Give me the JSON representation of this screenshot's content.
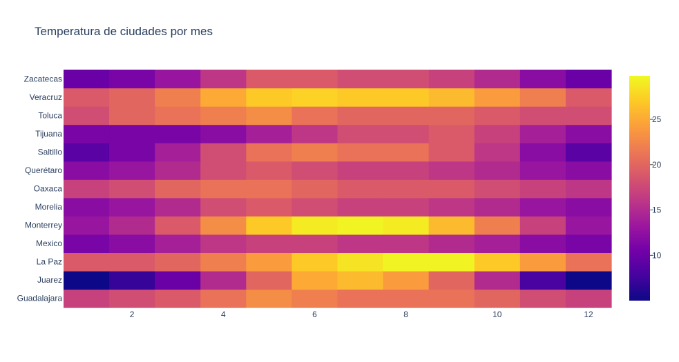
{
  "chart_data": {
    "type": "heatmap",
    "title": "Temperatura de ciudades por mes",
    "xlabel": "",
    "ylabel": "",
    "x": [
      1,
      2,
      3,
      4,
      5,
      6,
      7,
      8,
      9,
      10,
      11,
      12
    ],
    "x_ticks": [
      2,
      4,
      6,
      8,
      10,
      12
    ],
    "rows": [
      "Guadalajara",
      "Juarez",
      "La Paz",
      "Mexico",
      "Monterrey",
      "Morelia",
      "Oaxaca",
      "Querétaro",
      "Saltillo",
      "Tijuana",
      "Toluca",
      "Veracruz",
      "Zacatecas"
    ],
    "z": [
      [
        17,
        18,
        19,
        21,
        23,
        22,
        21,
        21,
        21,
        20,
        18,
        17
      ],
      [
        5,
        7,
        10,
        15,
        20,
        25,
        26,
        24,
        20,
        15,
        8,
        5
      ],
      [
        19,
        19,
        20,
        22,
        24,
        27,
        28.5,
        29.5,
        29.5,
        27,
        24,
        21
      ],
      [
        11,
        12,
        14,
        16,
        17,
        17,
        16,
        16,
        15,
        14,
        12,
        11
      ],
      [
        13,
        15,
        19,
        23,
        27,
        29,
        29.5,
        29,
        26,
        22,
        17,
        13
      ],
      [
        12,
        13,
        15,
        18,
        19,
        18,
        17,
        17,
        16,
        15,
        13,
        12
      ],
      [
        17,
        18,
        20,
        21,
        21,
        20,
        19,
        19,
        19,
        18,
        17,
        16
      ],
      [
        12,
        13,
        15,
        18,
        19,
        18,
        17,
        17,
        16,
        15,
        13,
        12
      ],
      [
        9,
        11,
        14,
        18,
        21,
        22,
        21,
        21,
        19,
        16,
        12,
        9
      ],
      [
        11,
        11,
        11,
        12,
        14,
        16,
        18,
        18,
        19,
        17,
        14,
        12
      ],
      [
        18,
        20,
        21,
        22,
        23,
        21,
        20,
        20,
        20,
        19,
        18,
        18
      ],
      [
        19,
        20,
        22,
        25,
        27,
        27.5,
        27,
        27,
        26,
        24,
        22,
        19
      ],
      [
        10,
        11,
        13,
        16,
        19,
        19,
        18,
        18,
        17,
        15,
        12,
        10
      ]
    ],
    "zrange": [
      5,
      29.8
    ],
    "colorscale": [
      "#0d0887",
      "#46039f",
      "#7201a8",
      "#9c179e",
      "#bd3786",
      "#d8576b",
      "#ed7953",
      "#fb9f3a",
      "#fdca26",
      "#f0f921"
    ],
    "colorbar_ticks": [
      10,
      15,
      20,
      25
    ],
    "showscale": true
  }
}
